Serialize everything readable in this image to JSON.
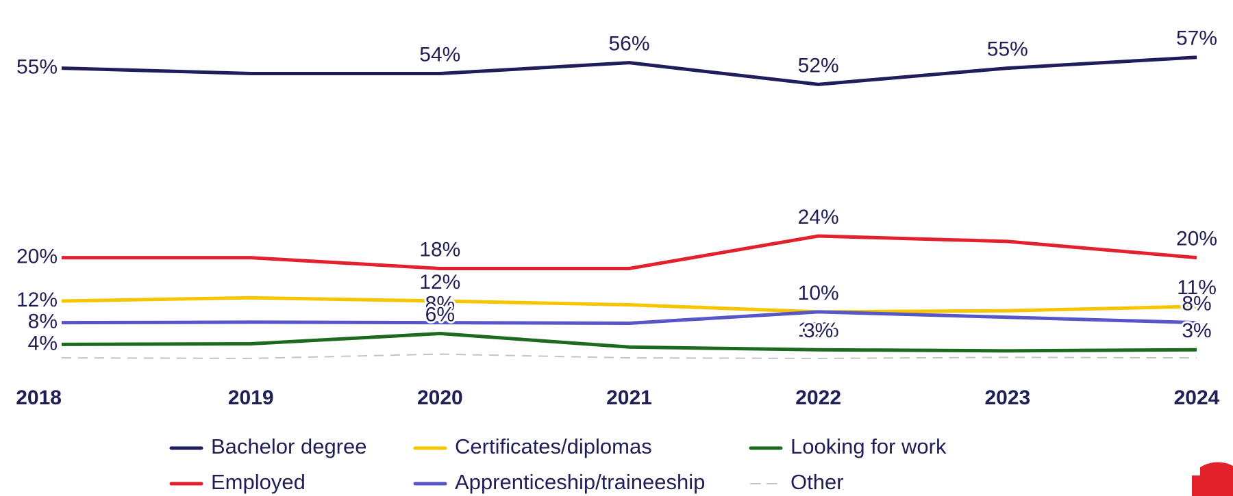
{
  "chart_data": {
    "type": "line",
    "x": [
      2018,
      2019,
      2020,
      2021,
      2022,
      2023,
      2024
    ],
    "ylim": [
      0,
      60
    ],
    "series": [
      {
        "name": "Bachelor degree",
        "color": "#1f1d5c",
        "values": [
          55,
          54,
          54,
          56,
          52,
          55,
          57
        ],
        "value_labels": [
          "55%",
          null,
          "54%",
          "56%",
          "52%",
          "55%",
          "57%"
        ]
      },
      {
        "name": "Employed",
        "color": "#e2212d",
        "values": [
          20,
          20,
          18,
          18,
          24,
          23,
          20
        ],
        "value_labels": [
          "20%",
          null,
          "18%",
          null,
          "24%",
          null,
          "20%"
        ]
      },
      {
        "name": "Certificates/diplomas",
        "color": "#f6c500",
        "values": [
          12,
          12.6,
          12,
          11.3,
          10,
          10.2,
          11
        ],
        "value_labels": [
          "12%",
          null,
          "12%",
          null,
          "10%",
          null,
          "11%"
        ]
      },
      {
        "name": "Apprenticeship/traineeship",
        "color": "#5656c8",
        "values": [
          8,
          8.1,
          8,
          7.9,
          10,
          9,
          8
        ],
        "value_labels": [
          "8%",
          null,
          "8%",
          null,
          "10%",
          null,
          "8%"
        ]
      },
      {
        "name": "Looking for work",
        "color": "#1b6a1f",
        "values": [
          4,
          4.1,
          6,
          3.5,
          3,
          2.8,
          3
        ],
        "value_labels": [
          "4%",
          null,
          "6%",
          null,
          "3%",
          null,
          "3%"
        ]
      },
      {
        "name": "Other",
        "color": "#c4c4c4",
        "style": "dashed",
        "values": [
          1.5,
          1.4,
          2.2,
          1.5,
          1.4,
          1.6,
          1.5
        ]
      }
    ]
  }
}
